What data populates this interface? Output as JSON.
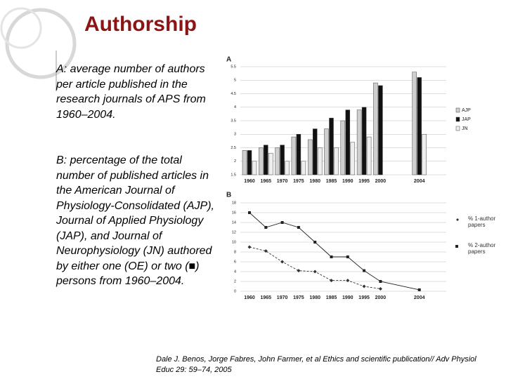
{
  "title": "Authorship",
  "text": {
    "a": "A: average number of authors per article published in the research journals of APS from 1960–2004.",
    "b": "B: percentage of the total number of published articles in the American Journal of Physiology-Consolidated (AJP), Journal of Applied Physiology (JAP), and Journal of Neurophysiology (JN) authored by either one (OE) or two (■) persons from 1960–2004."
  },
  "citation": "Dale J. Benos, Jorge Fabres, John Farmer, et al Ethics and scientific publication// Adv Physiol Educ 29: 59–74, 2005",
  "chart_data": [
    {
      "type": "bar",
      "label": "A",
      "categories": [
        "1960",
        "1965",
        "1970",
        "1975",
        "1980",
        "1985",
        "1990",
        "1995",
        "2000",
        "2004"
      ],
      "series": [
        {
          "name": "AJP",
          "color": "#cfcfcf",
          "values": [
            2.4,
            2.5,
            2.5,
            2.9,
            2.8,
            3.2,
            3.5,
            3.9,
            4.9,
            5.3
          ]
        },
        {
          "name": "JAP",
          "color": "#111111",
          "values": [
            2.4,
            2.6,
            2.6,
            3.0,
            3.2,
            3.6,
            3.9,
            4.0,
            4.8,
            5.1
          ]
        },
        {
          "name": "JN",
          "color": "#eeeeee",
          "values": [
            2.0,
            2.3,
            2.0,
            2.0,
            2.5,
            2.5,
            2.7,
            2.9,
            null,
            3.0
          ]
        }
      ],
      "ylim": [
        1.5,
        5.5
      ],
      "yticks": [
        1.5,
        2,
        2.5,
        3,
        3.5,
        4,
        4.5,
        5,
        5.5
      ],
      "grid": true
    },
    {
      "type": "line",
      "label": "B",
      "categories": [
        "1960",
        "1965",
        "1970",
        "1975",
        "1980",
        "1985",
        "1990",
        "1995",
        "2000",
        "2004"
      ],
      "series": [
        {
          "name": "% 1-author papers",
          "color": "#333333",
          "marker": "diamond",
          "dash": true,
          "values": [
            9,
            8.2,
            6,
            4.2,
            4,
            2.2,
            2.2,
            1,
            0.5,
            null
          ]
        },
        {
          "name": "% 2-author papers",
          "color": "#222222",
          "marker": "square",
          "dash": false,
          "values": [
            16,
            13,
            14,
            13,
            10,
            7,
            7,
            4.2,
            2,
            0.3
          ]
        }
      ],
      "ylim": [
        0,
        18
      ],
      "yticks": [
        0,
        2,
        4,
        6,
        8,
        10,
        12,
        14,
        16,
        18
      ],
      "grid": true
    }
  ]
}
